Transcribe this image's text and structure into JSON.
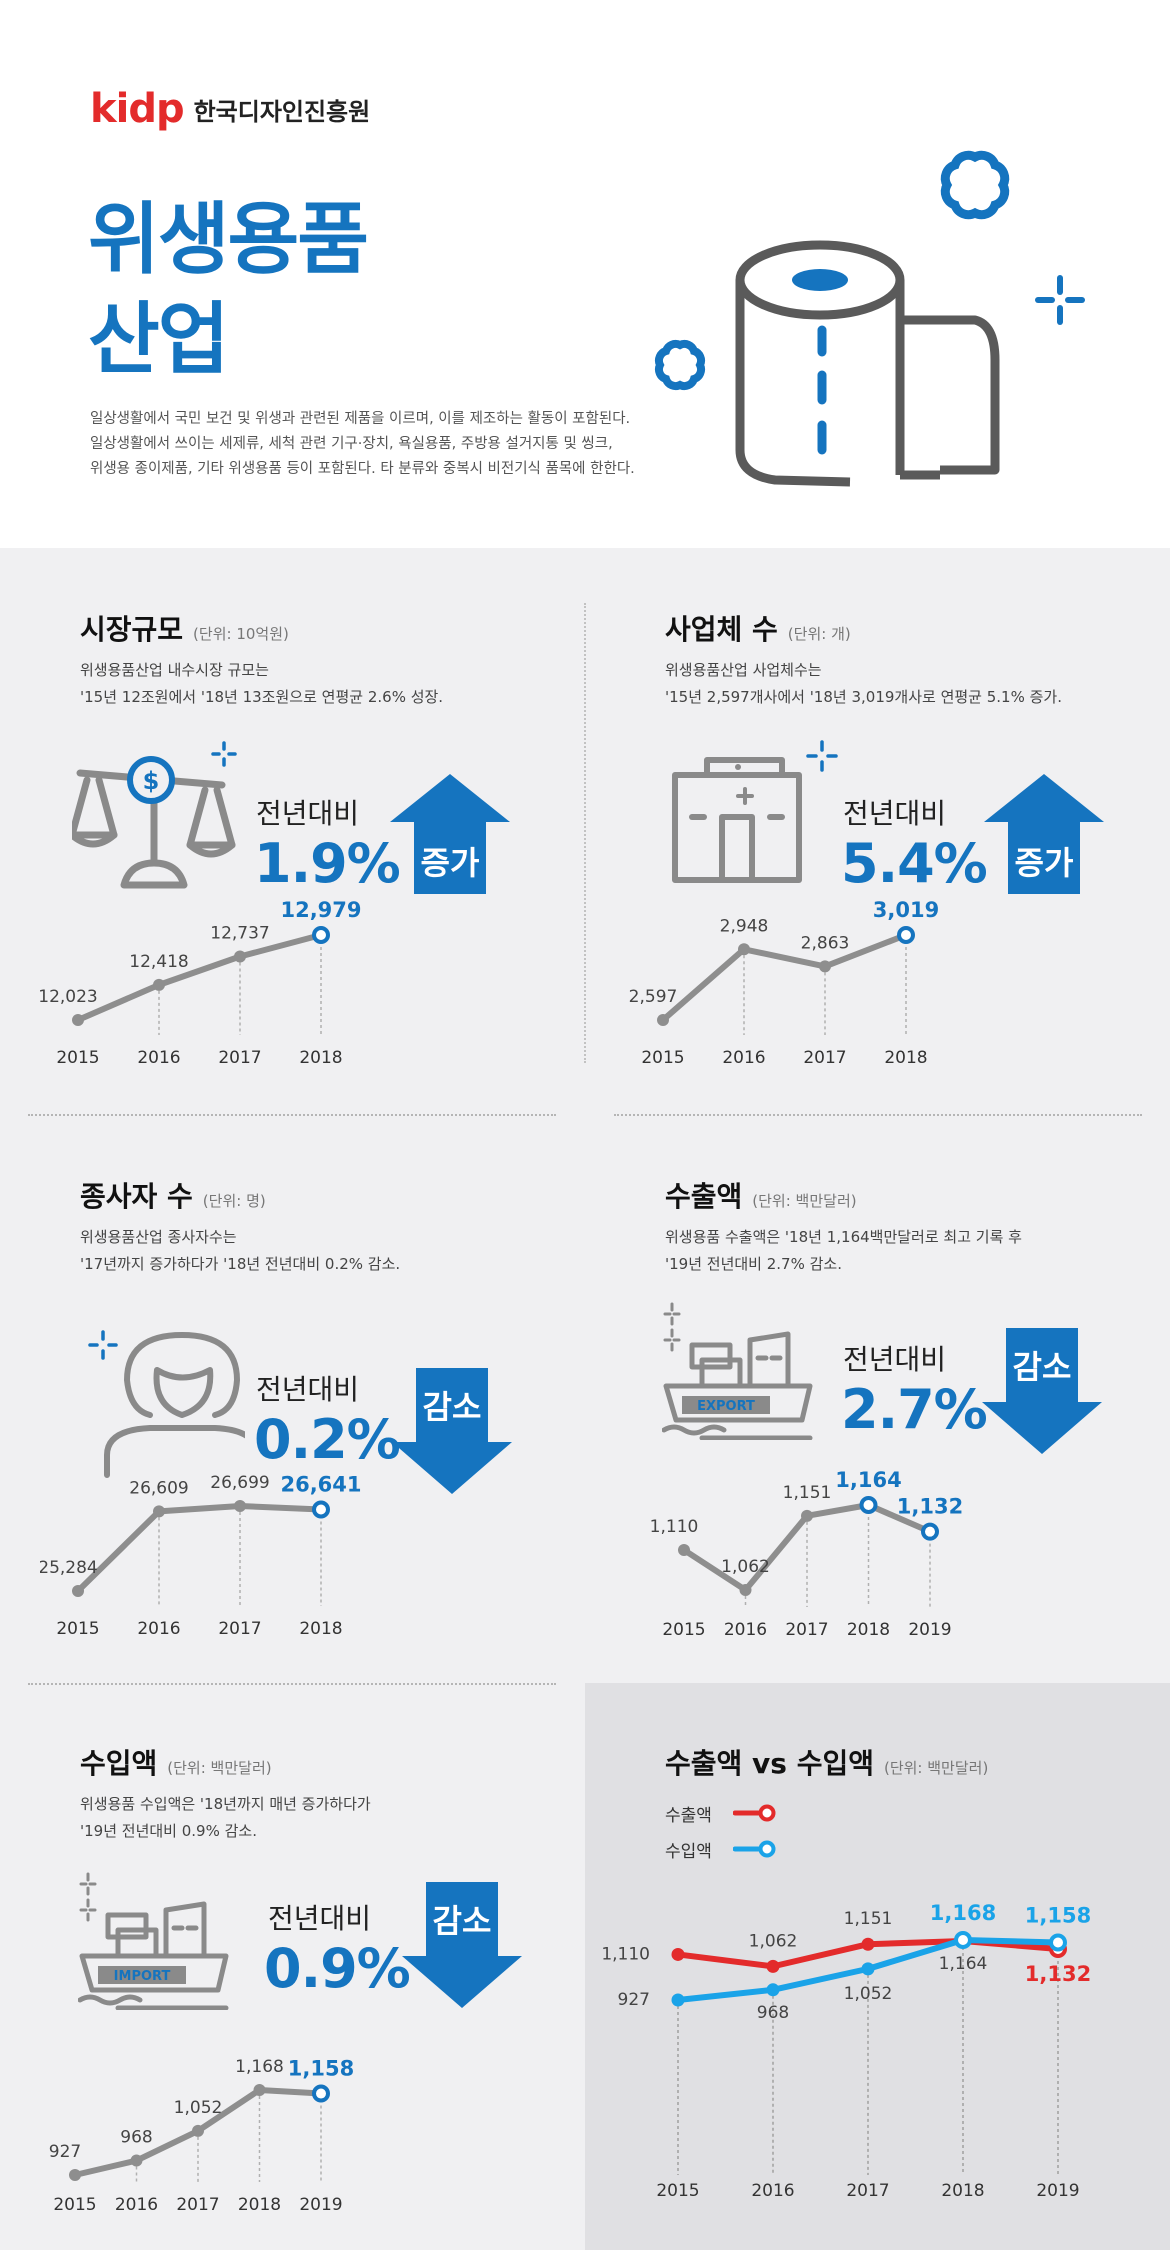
{
  "header": {
    "logo_mark": "kidp",
    "logo_text": "한국디자인진흥원",
    "title_line1": "위생용품",
    "title_line2": "산업",
    "description": [
      "일상생활에서 국민 보건 및 위생과 관련된 제품을 이르며, 이를 제조하는 활동이 포함된다.",
      "일상생활에서 쓰이는 세제류, 세척 관련 기구·장치, 욕실용품, 주방용 설거지통 및 씽크,",
      "위생용 종이제품, 기타 위생용품 등이 포함된다. 타 분류와 중복시 비전기식 품목에 한한다."
    ]
  },
  "sections": {
    "market": {
      "title": "시장규모",
      "unit": "(단위: 10억원)",
      "desc": [
        "위생용품산업 내수시장 규모는",
        "'15년 12조원에서 '18년 13조원으로 연평균 2.6% 성장."
      ],
      "yoy_label": "전년대비",
      "yoy_value": "1.9%",
      "arrow_label": "증가",
      "direction": "up"
    },
    "companies": {
      "title": "사업체 수",
      "unit": "(단위: 개)",
      "desc": [
        "위생용품산업 사업체수는",
        "'15년 2,597개사에서 '18년 3,019개사로 연평균 5.1% 증가."
      ],
      "yoy_label": "전년대비",
      "yoy_value": "5.4%",
      "arrow_label": "증가",
      "direction": "up"
    },
    "employees": {
      "title": "종사자 수",
      "unit": "(단위: 명)",
      "desc": [
        "위생용품산업 종사자수는",
        "'17년까지 증가하다가 '18년 전년대비 0.2% 감소."
      ],
      "yoy_label": "전년대비",
      "yoy_value": "0.2%",
      "arrow_label": "감소",
      "direction": "down"
    },
    "exports": {
      "title": "수출액",
      "unit": "(단위: 백만달러)",
      "desc": [
        "위생용품 수출액은 '18년 1,164백만달러로 최고 기록 후",
        "'19년 전년대비 2.7% 감소."
      ],
      "yoy_label": "전년대비",
      "yoy_value": "2.7%",
      "arrow_label": "감소",
      "direction": "down",
      "icon_text": "EXPORT"
    },
    "imports": {
      "title": "수입액",
      "unit": "(단위: 백만달러)",
      "desc": [
        "위생용품 수입액은 '18년까지 매년 증가하다가",
        "'19년 전년대비 0.9% 감소."
      ],
      "yoy_label": "전년대비",
      "yoy_value": "0.9%",
      "arrow_label": "감소",
      "direction": "down",
      "icon_text": "IMPORT"
    },
    "compare": {
      "title": "수출액 vs 수입액",
      "unit": "(단위: 백만달러)",
      "legend": [
        "수출액",
        "수입액"
      ]
    }
  },
  "colors": {
    "brand_blue": "#1574bf",
    "logo_red": "#e32b2b",
    "line_gray": "#8e8e8e",
    "export_red": "#e32b2b",
    "import_blue": "#1aa3e8",
    "icon_gray": "#8a8a8a"
  },
  "chart_data": [
    {
      "id": "market",
      "type": "line",
      "x": [
        "2015",
        "2016",
        "2017",
        "2018"
      ],
      "labels": [
        "12,023",
        "12,418",
        "12,737",
        "12,979"
      ],
      "values": [
        12023,
        12418,
        12737,
        12979
      ]
    },
    {
      "id": "companies",
      "type": "line",
      "x": [
        "2015",
        "2016",
        "2017",
        "2018"
      ],
      "labels": [
        "2,597",
        "2,948",
        "2,863",
        "3,019"
      ],
      "values": [
        2597,
        2948,
        2863,
        3019
      ]
    },
    {
      "id": "employees",
      "type": "line",
      "x": [
        "2015",
        "2016",
        "2017",
        "2018"
      ],
      "labels": [
        "25,284",
        "26,609",
        "26,699",
        "26,641"
      ],
      "values": [
        25284,
        26609,
        26699,
        26641
      ]
    },
    {
      "id": "exports",
      "type": "line",
      "x": [
        "2015",
        "2016",
        "2017",
        "2018",
        "2019"
      ],
      "labels": [
        "1,110",
        "1,062",
        "1,151",
        "1,164",
        "1,132"
      ],
      "values": [
        1110,
        1062,
        1151,
        1164,
        1132
      ]
    },
    {
      "id": "imports",
      "type": "line",
      "x": [
        "2015",
        "2016",
        "2017",
        "2018",
        "2019"
      ],
      "labels": [
        "927",
        "968",
        "1,052",
        "1,168",
        "1,158"
      ],
      "values": [
        927,
        968,
        1052,
        1168,
        1158
      ]
    },
    {
      "id": "compare",
      "type": "line",
      "x": [
        "2015",
        "2016",
        "2017",
        "2018",
        "2019"
      ],
      "series": [
        {
          "name": "수출액",
          "values": [
            1110,
            1062,
            1151,
            1164,
            1132
          ],
          "labels": [
            "1,110",
            "1,062",
            "1,151",
            "1,164",
            "1,132"
          ]
        },
        {
          "name": "수입액",
          "values": [
            927,
            968,
            1052,
            1168,
            1158
          ],
          "labels": [
            "927",
            "968",
            "1,052",
            "1,168",
            "1,158"
          ]
        }
      ]
    }
  ]
}
